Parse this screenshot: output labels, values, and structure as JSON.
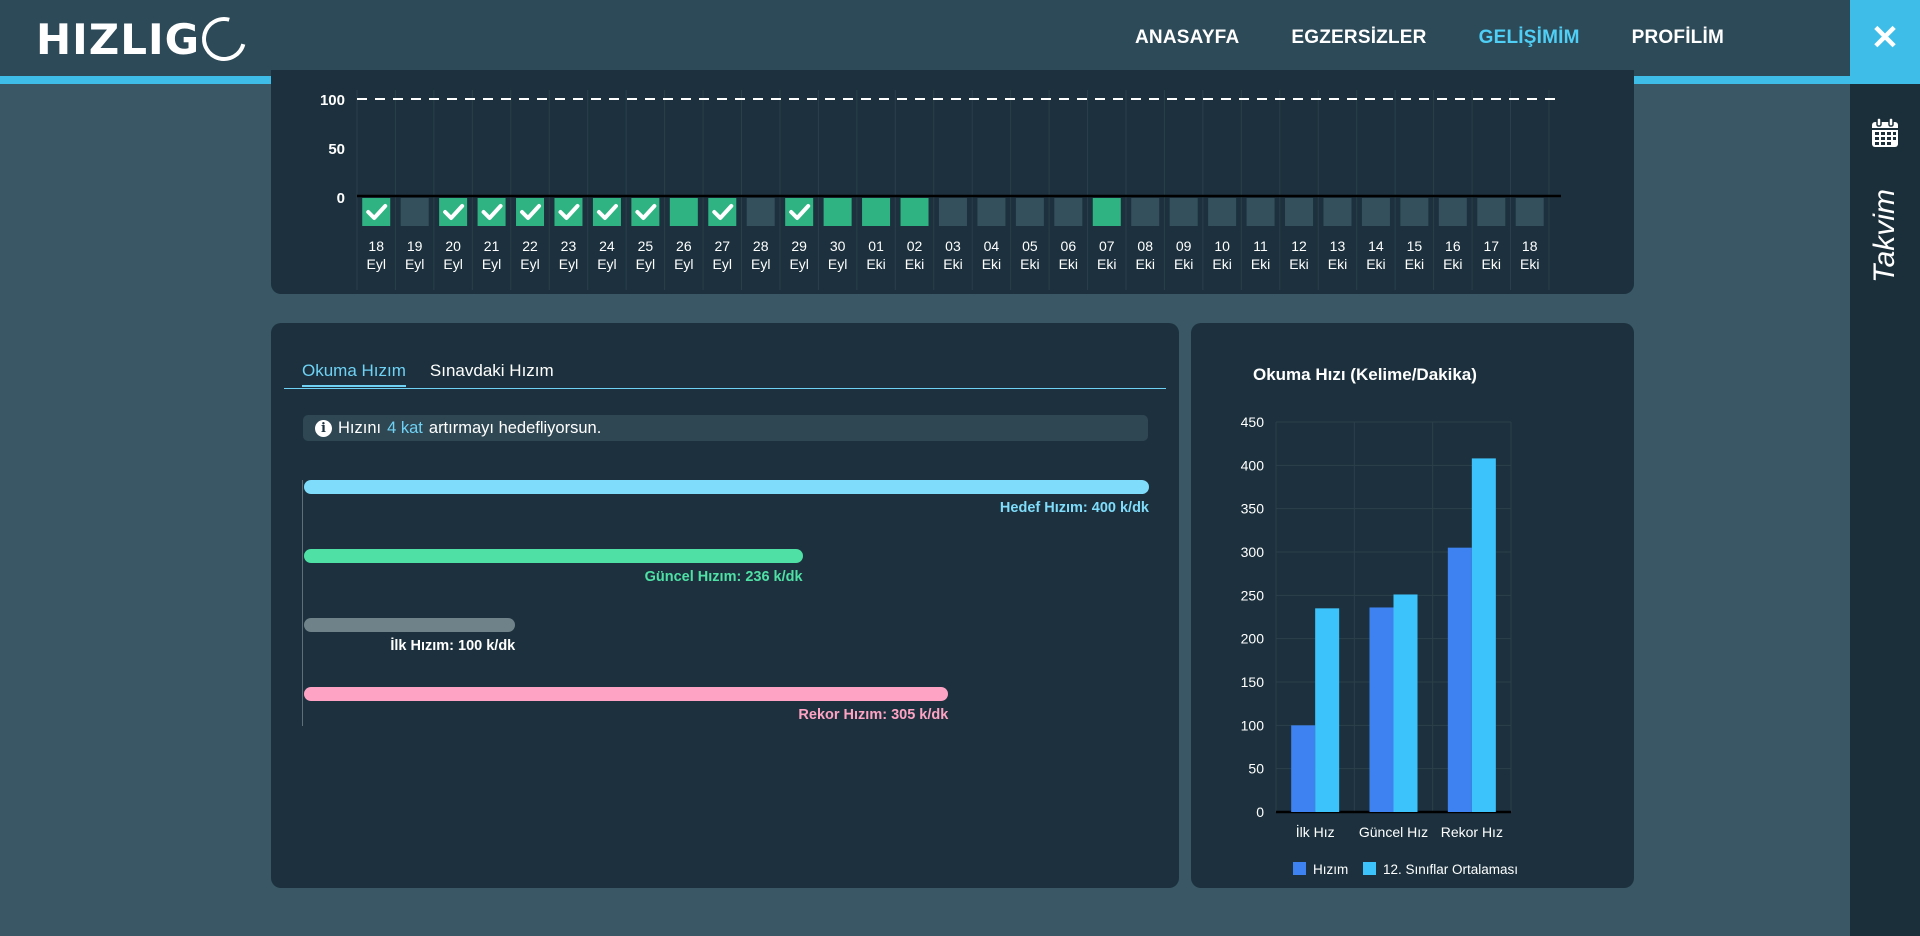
{
  "header": {
    "logo": "HIZLIG",
    "nav": [
      {
        "label": "ANASAYFA",
        "active": false
      },
      {
        "label": "EGZERSİZLER",
        "active": false
      },
      {
        "label": "GELİŞİMİM",
        "active": true
      },
      {
        "label": "PROFİLİM",
        "active": false
      }
    ]
  },
  "sidebar": {
    "close_icon": "close-icon",
    "calendar_icon": "calendar-icon",
    "label": "Takvim"
  },
  "streak": {
    "y_ticks": [
      "100",
      "50",
      "0"
    ],
    "days": [
      {
        "day": "18",
        "month": "Eyl",
        "status": "done"
      },
      {
        "day": "19",
        "month": "Eyl",
        "status": "empty"
      },
      {
        "day": "20",
        "month": "Eyl",
        "status": "done"
      },
      {
        "day": "21",
        "month": "Eyl",
        "status": "done"
      },
      {
        "day": "22",
        "month": "Eyl",
        "status": "done"
      },
      {
        "day": "23",
        "month": "Eyl",
        "status": "done"
      },
      {
        "day": "24",
        "month": "Eyl",
        "status": "done"
      },
      {
        "day": "25",
        "month": "Eyl",
        "status": "done"
      },
      {
        "day": "26",
        "month": "Eyl",
        "status": "partial"
      },
      {
        "day": "27",
        "month": "Eyl",
        "status": "done"
      },
      {
        "day": "28",
        "month": "Eyl",
        "status": "empty"
      },
      {
        "day": "29",
        "month": "Eyl",
        "status": "done"
      },
      {
        "day": "30",
        "month": "Eyl",
        "status": "partial"
      },
      {
        "day": "01",
        "month": "Eki",
        "status": "partial"
      },
      {
        "day": "02",
        "month": "Eki",
        "status": "partial"
      },
      {
        "day": "03",
        "month": "Eki",
        "status": "empty"
      },
      {
        "day": "04",
        "month": "Eki",
        "status": "empty"
      },
      {
        "day": "05",
        "month": "Eki",
        "status": "empty"
      },
      {
        "day": "06",
        "month": "Eki",
        "status": "empty"
      },
      {
        "day": "07",
        "month": "Eki",
        "status": "partial"
      },
      {
        "day": "08",
        "month": "Eki",
        "status": "empty"
      },
      {
        "day": "09",
        "month": "Eki",
        "status": "empty"
      },
      {
        "day": "10",
        "month": "Eki",
        "status": "empty"
      },
      {
        "day": "11",
        "month": "Eki",
        "status": "empty"
      },
      {
        "day": "12",
        "month": "Eki",
        "status": "empty"
      },
      {
        "day": "13",
        "month": "Eki",
        "status": "empty"
      },
      {
        "day": "14",
        "month": "Eki",
        "status": "empty"
      },
      {
        "day": "15",
        "month": "Eki",
        "status": "empty"
      },
      {
        "day": "16",
        "month": "Eki",
        "status": "empty"
      },
      {
        "day": "17",
        "month": "Eki",
        "status": "empty"
      },
      {
        "day": "18",
        "month": "Eki",
        "status": "empty"
      }
    ]
  },
  "speed_panel": {
    "tabs": [
      {
        "label": "Okuma Hızım",
        "active": true
      },
      {
        "label": "Sınavdaki Hızım",
        "active": false
      }
    ],
    "info": {
      "prefix": "Hızını",
      "highlight": "4 kat",
      "suffix": "artırmayı hedefliyorsun."
    },
    "bars": [
      {
        "name": "target",
        "label": "Hedef Hızım: 400 k/dk",
        "value": 400,
        "color": "#7fdcfb",
        "label_color": "#7fdcfb"
      },
      {
        "name": "current",
        "label": "Güncel Hızım: 236 k/dk",
        "value": 236,
        "color": "#4ee0a5",
        "label_color": "#4ee0a5"
      },
      {
        "name": "initial",
        "label": "İlk Hızım: 100 k/dk",
        "value": 100,
        "color": "#6f828a",
        "label_color": "#ffffff"
      },
      {
        "name": "record",
        "label": "Rekor Hızım: 305 k/dk",
        "value": 305,
        "color": "#ffa3c4",
        "label_color": "#ffa3c4"
      }
    ],
    "max_value": 400
  },
  "chart_data": {
    "type": "bar",
    "title": "Okuma Hızı (Kelime/Dakika)",
    "categories": [
      "İlk Hız",
      "Güncel Hız",
      "Rekor Hız"
    ],
    "series": [
      {
        "name": "Hızım",
        "values": [
          100,
          236,
          305
        ],
        "color": "#3d82f0"
      },
      {
        "name": "12. Sınıflar Ortalaması",
        "values": [
          235,
          251,
          408
        ],
        "color": "#3dc3fb"
      }
    ],
    "y_ticks": [
      0,
      50,
      100,
      150,
      200,
      250,
      300,
      350,
      400,
      450
    ],
    "ylim": [
      0,
      450
    ],
    "xlabel": "",
    "ylabel": "",
    "grid": true,
    "legend": "bottom"
  }
}
